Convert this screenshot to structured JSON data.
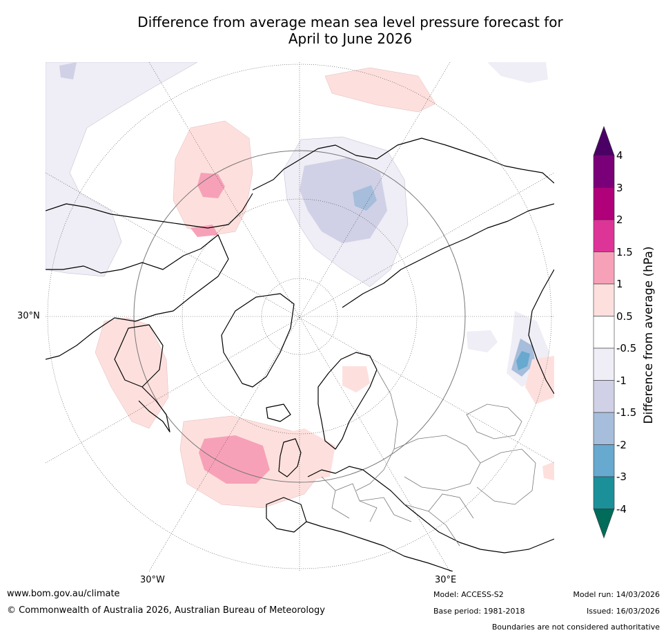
{
  "title": {
    "line1": "Difference from average mean sea level pressure forecast for",
    "line2": "April to June 2026"
  },
  "map": {
    "projection": "north-polar-stereographic",
    "graticule_labels": {
      "lat_30n": "30°N",
      "lon_30w": "30°W",
      "lon_30e": "30°E"
    }
  },
  "colorbar": {
    "label": "Difference from average (hPa)",
    "tick_labels": [
      "4",
      "3",
      "2",
      "1.5",
      "1",
      "0.5",
      "-0.5",
      "-1",
      "-1.5",
      "-2",
      "-3",
      "-4"
    ],
    "bins": [
      {
        "range": "above 4",
        "color": "#4b0066"
      },
      {
        "range": "3 to 4",
        "color": "#7a0079"
      },
      {
        "range": "2 to 3",
        "color": "#b0007a"
      },
      {
        "range": "1.5 to 2",
        "color": "#dd3497"
      },
      {
        "range": "1 to 1.5",
        "color": "#f7a1b8"
      },
      {
        "range": "0.5 to 1",
        "color": "#fde0dd"
      },
      {
        "range": "-0.5 to 0.5",
        "color": "#ffffff"
      },
      {
        "range": "-1 to -0.5",
        "color": "#efedf5"
      },
      {
        "range": "-1.5 to -1",
        "color": "#d0d1e6"
      },
      {
        "range": "-2 to -1.5",
        "color": "#a6bddb"
      },
      {
        "range": "-3 to -2",
        "color": "#67a9cf"
      },
      {
        "range": "-4 to -3",
        "color": "#1c9099"
      },
      {
        "range": "below -4",
        "color": "#016c59"
      }
    ]
  },
  "footer": {
    "website": "www.bom.gov.au/climate",
    "copyright": "© Commonwealth of Australia 2026, Australian Bureau of Meteorology",
    "model": "Model: ACCESS-S2",
    "base_period": "Base period: 1981-2018",
    "model_run": "Model run: 14/03/2026",
    "issued": "Issued: 16/03/2026",
    "disclaimer": "Boundaries are not considered authoritative"
  }
}
